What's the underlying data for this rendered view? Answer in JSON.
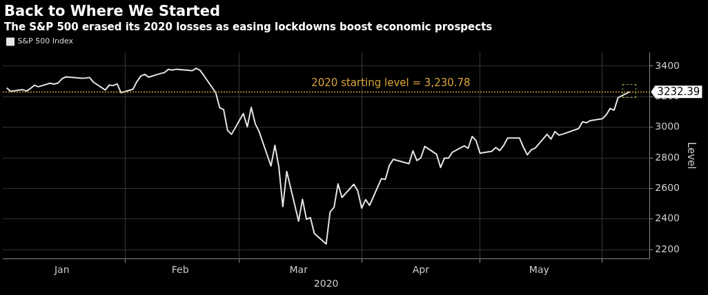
{
  "chart_data": {
    "type": "line",
    "title": "Back to Where We Started",
    "subtitle": "The S&P 500 erased its 2020 losses as easing lockdowns boost economic prospects",
    "x": [
      "2020-01-02",
      "2020-01-03",
      "2020-01-06",
      "2020-01-07",
      "2020-01-08",
      "2020-01-09",
      "2020-01-10",
      "2020-01-13",
      "2020-01-14",
      "2020-01-15",
      "2020-01-16",
      "2020-01-17",
      "2020-01-21",
      "2020-01-22",
      "2020-01-23",
      "2020-01-24",
      "2020-01-27",
      "2020-01-28",
      "2020-01-29",
      "2020-01-30",
      "2020-01-31",
      "2020-02-03",
      "2020-02-04",
      "2020-02-05",
      "2020-02-06",
      "2020-02-07",
      "2020-02-10",
      "2020-02-11",
      "2020-02-12",
      "2020-02-13",
      "2020-02-14",
      "2020-02-18",
      "2020-02-19",
      "2020-02-20",
      "2020-02-21",
      "2020-02-24",
      "2020-02-25",
      "2020-02-26",
      "2020-02-27",
      "2020-02-28",
      "2020-03-02",
      "2020-03-03",
      "2020-03-04",
      "2020-03-05",
      "2020-03-06",
      "2020-03-09",
      "2020-03-10",
      "2020-03-11",
      "2020-03-12",
      "2020-03-13",
      "2020-03-16",
      "2020-03-17",
      "2020-03-18",
      "2020-03-19",
      "2020-03-20",
      "2020-03-23",
      "2020-03-24",
      "2020-03-25",
      "2020-03-26",
      "2020-03-27",
      "2020-03-30",
      "2020-03-31",
      "2020-04-01",
      "2020-04-02",
      "2020-04-03",
      "2020-04-06",
      "2020-04-07",
      "2020-04-08",
      "2020-04-09",
      "2020-04-13",
      "2020-04-14",
      "2020-04-15",
      "2020-04-16",
      "2020-04-17",
      "2020-04-20",
      "2020-04-21",
      "2020-04-22",
      "2020-04-23",
      "2020-04-24",
      "2020-04-27",
      "2020-04-28",
      "2020-04-29",
      "2020-04-30",
      "2020-05-01",
      "2020-05-04",
      "2020-05-05",
      "2020-05-06",
      "2020-05-07",
      "2020-05-08",
      "2020-05-11",
      "2020-05-12",
      "2020-05-13",
      "2020-05-14",
      "2020-05-15",
      "2020-05-18",
      "2020-05-19",
      "2020-05-20",
      "2020-05-21",
      "2020-05-22",
      "2020-05-26",
      "2020-05-27",
      "2020-05-28",
      "2020-05-29",
      "2020-06-01",
      "2020-06-02",
      "2020-06-03",
      "2020-06-04",
      "2020-06-05",
      "2020-06-08"
    ],
    "series": [
      {
        "name": "S&P 500 Index",
        "color": "#e6e6e6",
        "values": [
          3258,
          3235,
          3246,
          3237,
          3253,
          3275,
          3265,
          3288,
          3283,
          3289,
          3317,
          3330,
          3321,
          3322,
          3326,
          3295,
          3244,
          3276,
          3273,
          3284,
          3226,
          3249,
          3298,
          3335,
          3346,
          3328,
          3352,
          3358,
          3379,
          3374,
          3380,
          3370,
          3386,
          3373,
          3338,
          3226,
          3128,
          3116,
          2979,
          2954,
          3090,
          3003,
          3130,
          3024,
          2972,
          2747,
          2882,
          2741,
          2481,
          2711,
          2386,
          2529,
          2398,
          2409,
          2305,
          2237,
          2447,
          2476,
          2630,
          2541,
          2627,
          2585,
          2471,
          2527,
          2489,
          2664,
          2659,
          2750,
          2790,
          2762,
          2846,
          2783,
          2800,
          2875,
          2823,
          2737,
          2799,
          2798,
          2837,
          2878,
          2863,
          2940,
          2912,
          2831,
          2843,
          2868,
          2848,
          2881,
          2930,
          2930,
          2870,
          2820,
          2853,
          2864,
          2954,
          2923,
          2972,
          2949,
          2955,
          2992,
          3036,
          3030,
          3044,
          3056,
          3081,
          3123,
          3112,
          3194,
          3232.39
        ]
      }
    ],
    "xlim": [
      "2020-01-01",
      "2020-06-13"
    ],
    "xticks": [
      {
        "value": "2020-01-16",
        "label": "Jan"
      },
      {
        "value": "2020-02-01",
        "label": null
      },
      {
        "value": "2020-02-15",
        "label": "Feb"
      },
      {
        "value": "2020-03-01",
        "label": null
      },
      {
        "value": "2020-03-16",
        "label": "Mar"
      },
      {
        "value": "2020-04-01",
        "label": null
      },
      {
        "value": "2020-04-16",
        "label": "Apr"
      },
      {
        "value": "2020-05-01",
        "label": null
      },
      {
        "value": "2020-05-16",
        "label": "May"
      },
      {
        "value": "2020-06-01",
        "label": null
      }
    ],
    "xlabel": "2020",
    "ylabel": "Level",
    "ylim": [
      2140,
      3490
    ],
    "yticks": [
      2200,
      2400,
      2600,
      2800,
      3000,
      3200,
      3400
    ],
    "grid": true,
    "legend": "top left",
    "ref_lines": [
      {
        "axis": "y",
        "value": 3230.78,
        "label": "2020 starting level = 3,230.78",
        "color": "#d9a53a",
        "line_style": "dotted"
      }
    ],
    "annotations": [
      {
        "text": "3232.39",
        "x": "2020-06-08",
        "y": 3232.39
      }
    ]
  }
}
